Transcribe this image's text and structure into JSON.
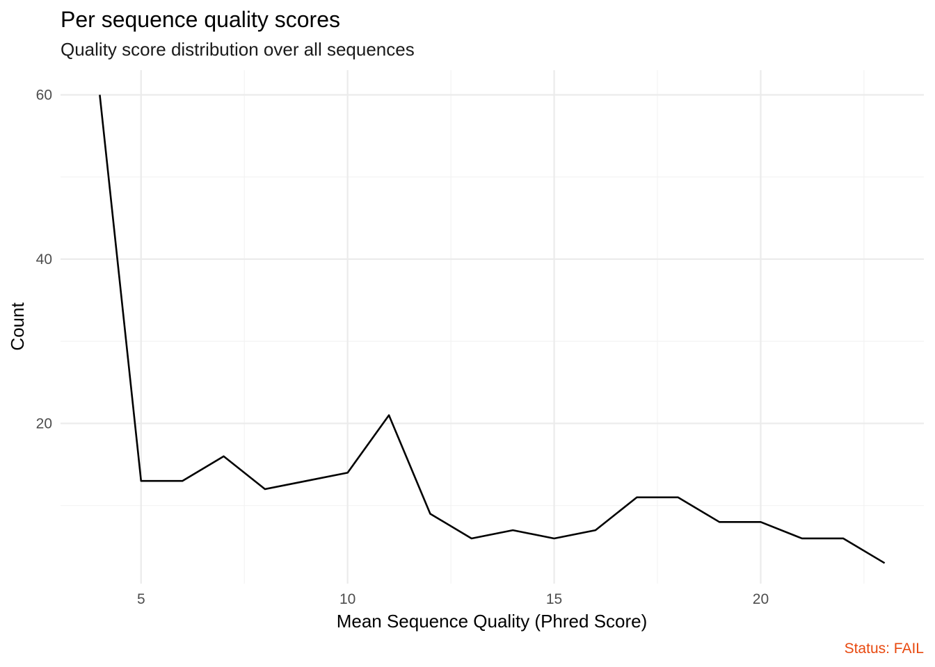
{
  "chart_data": {
    "type": "line",
    "title": "Per sequence quality scores",
    "subtitle": "Quality score distribution over all sequences",
    "xlabel": "Mean Sequence Quality (Phred Score)",
    "ylabel": "Count",
    "caption": "Status: FAIL",
    "caption_color": "#e8490f",
    "line_color": "#000000",
    "grid": true,
    "x_ticks": [
      5,
      10,
      15,
      20
    ],
    "y_ticks": [
      20,
      40,
      60
    ],
    "xlim": [
      3.05,
      23.95
    ],
    "ylim": [
      0.5,
      63
    ],
    "series": [
      {
        "x": [
          4,
          5,
          6,
          7,
          8,
          9,
          10,
          11,
          12,
          13,
          14,
          15,
          16,
          17,
          18,
          19,
          20,
          21,
          22,
          23
        ],
        "values": [
          60,
          13,
          13,
          16,
          12,
          13,
          14,
          21,
          9,
          6,
          7,
          6,
          7,
          11,
          11,
          8,
          8,
          6,
          6,
          3
        ]
      }
    ]
  }
}
